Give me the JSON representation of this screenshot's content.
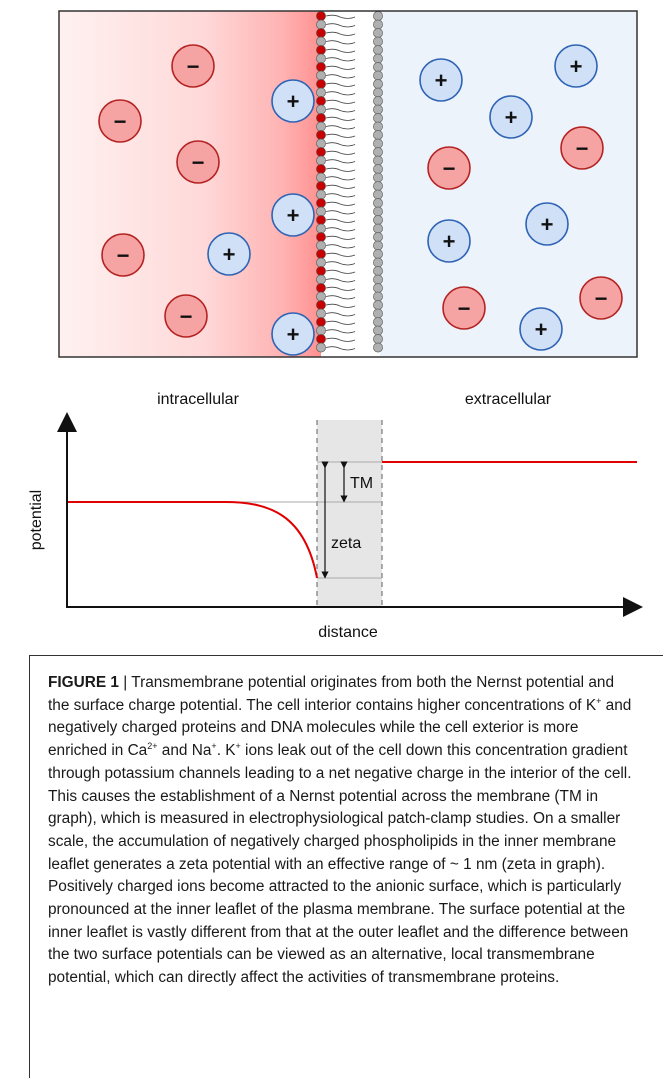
{
  "labels": {
    "intracellular": "intracellular",
    "extracellular": "extracellular",
    "y_axis": "potential",
    "x_axis": "distance",
    "tm": "TM",
    "zeta": "zeta"
  },
  "ions": {
    "negative_sign": "−",
    "positive_sign": "+"
  },
  "colors": {
    "negative_ion_fill": "#f5a3a3",
    "negative_ion_stroke": "#b42323",
    "positive_ion_fill": "#cfe0f7",
    "positive_ion_stroke": "#2f63b4",
    "phospholipid_negative": "#c80000",
    "phospholipid_neutral": "#b0b0b0",
    "potential_curve": "#e00000",
    "extracellular_bg": "#edf3fb",
    "membrane_band": "#e6e6e6"
  },
  "caption": {
    "figure_label": "FIGURE 1",
    "separator": " | ",
    "part1": "Transmembrane potential originates from both the Nernst potential and the surface charge potential. The cell interior contains higher concentrations of K",
    "sup1": "+",
    "part2": " and negatively charged proteins and DNA molecules while the cell exterior is more enriched in Ca",
    "sup2": "2+",
    "part3": " and Na",
    "sup3": "+",
    "part4": ". K",
    "sup4": "+",
    "part5": " ions leak out of the cell down this concentration gradient through potassium channels leading to a net negative charge in the interior of the cell. This causes the establishment of a Nernst potential across the membrane (TM in graph), which is measured in electrophysiological patch-clamp studies. On a smaller scale, the accumulation of negatively charged phospholipids in the inner membrane leaflet generates a zeta potential with an effective range of ~ 1 nm (zeta in graph). Positively charged ions become attracted to the anionic surface, which is particularly pronounced at the inner leaflet of the plasma membrane. The surface potential at the inner leaflet is vastly different from that at the outer leaflet and the difference between the two surface potentials can be viewed as an alternative, local transmembrane potential, which can directly affect the activities of transmembrane proteins."
  }
}
